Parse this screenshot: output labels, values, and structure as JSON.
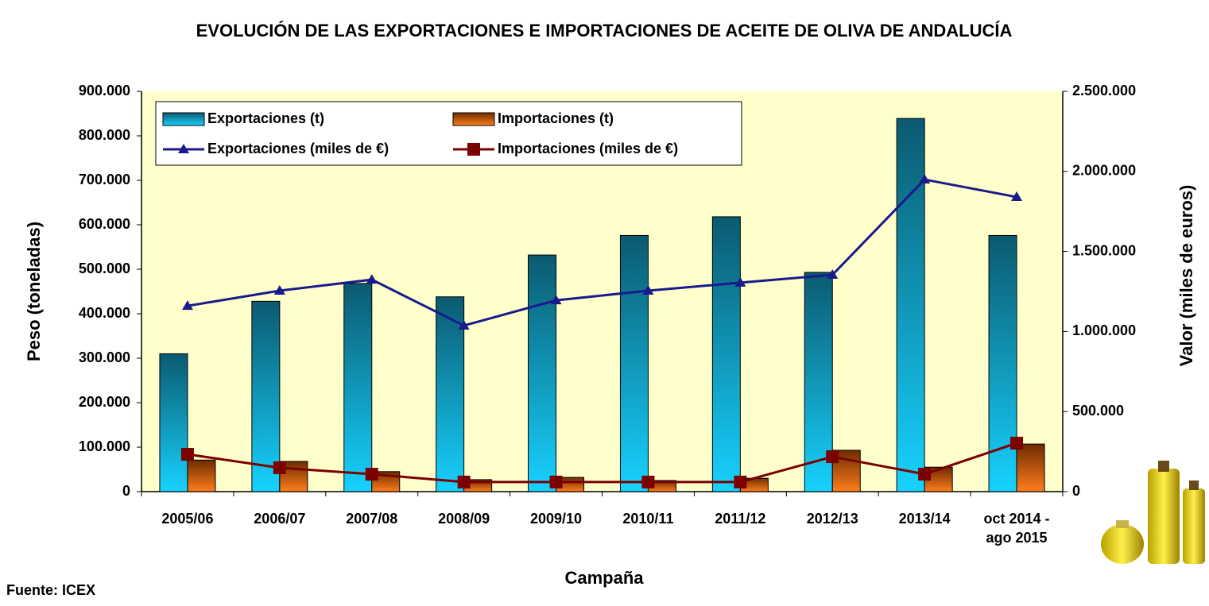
{
  "chart_data": {
    "type": "bar_line",
    "title": "EVOLUCIÓN DE LAS EXPORTACIONES E IMPORTACIONES DE ACEITE DE OLIVA DE ANDALUCÍA",
    "x_label": "Campaña",
    "y_label": "Peso (toneladas)",
    "y2_label": "Valor (miles de euros)",
    "source": "Fuente: ICEX",
    "categories": [
      "2005/06",
      "2006/07",
      "2007/08",
      "2008/09",
      "2009/10",
      "2010/11",
      "2011/12",
      "2012/13",
      "2013/14",
      "oct 2014 - ago 2015"
    ],
    "ylim": [
      0,
      900000
    ],
    "yticks": [
      0,
      {
        "value": 100000,
        "label": "100.000"
      },
      {
        "value": 200000,
        "label": "200.000"
      },
      {
        "value": 300000,
        "label": "300.000"
      },
      {
        "value": 400000,
        "label": "400.000"
      },
      {
        "value": 500000,
        "label": "500.000"
      },
      {
        "value": 600000,
        "label": "600.000"
      },
      {
        "value": 700000,
        "label": "700.000"
      },
      {
        "value": 800000,
        "label": "800.000"
      },
      {
        "value": 900000,
        "label": "900.000"
      }
    ],
    "y2lim": [
      0,
      2500000
    ],
    "y2ticks": [
      0,
      {
        "value": 500000,
        "label": "500.000"
      },
      {
        "value": 1000000,
        "label": "1.000.000"
      },
      {
        "value": 1500000,
        "label": "1.500.000"
      },
      {
        "value": 2000000,
        "label": "2.000.000"
      },
      {
        "value": 2500000,
        "label": "2.500.000"
      }
    ],
    "grid": false,
    "series": [
      {
        "name": "Exportaciones (t)",
        "type": "bar",
        "color": "#13a6cc",
        "values": [
          310000,
          428000,
          468000,
          438000,
          532000,
          576000,
          618000,
          493000,
          839000,
          576000
        ]
      },
      {
        "name": "Importaciones (t)",
        "type": "bar",
        "color": "#e8650f",
        "values": [
          71000,
          68000,
          45000,
          27000,
          32000,
          25000,
          30000,
          93000,
          55000,
          107000
        ]
      },
      {
        "name": "Exportaciones (miles de €)",
        "type": "line",
        "marker": "triangle",
        "axis": "y2",
        "color": "#1a1a8c",
        "values": [
          1160000,
          1255000,
          1324000,
          1037000,
          1195000,
          1255000,
          1305000,
          1354000,
          1949000,
          1840000
        ]
      },
      {
        "name": "Importaciones (miles de €)",
        "type": "line",
        "marker": "square",
        "axis": "y2",
        "color": "#7b0000",
        "values": [
          233000,
          149000,
          109000,
          60000,
          60000,
          60000,
          60000,
          218000,
          109000,
          303000
        ]
      }
    ]
  }
}
